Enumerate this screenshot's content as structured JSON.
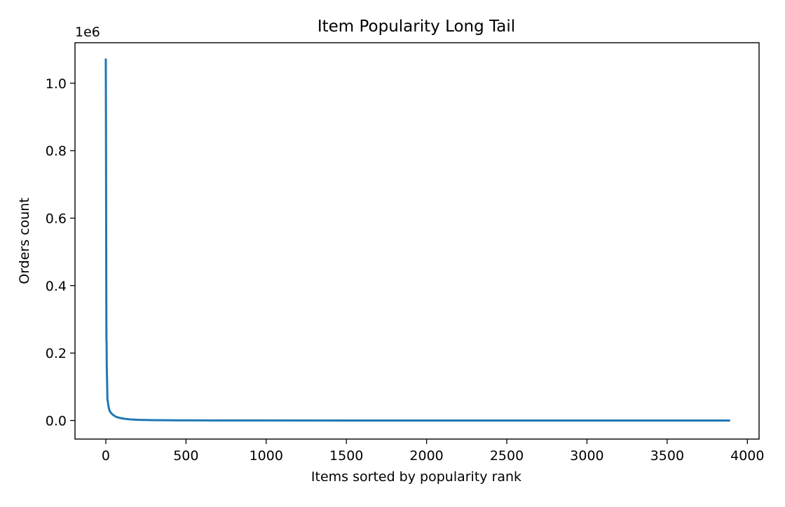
{
  "chart_data": {
    "type": "line",
    "title": "Item Popularity Long Tail",
    "xlabel": "Items sorted by popularity rank",
    "ylabel": "Orders count",
    "y_offset_label": "1e6",
    "xlim": [
      -192,
      4073
    ],
    "ylim": [
      -0.055,
      1.12
    ],
    "y_scale_factor": 1000000,
    "x_ticks": [
      0,
      500,
      1000,
      1500,
      2000,
      2500,
      3000,
      3500,
      4000
    ],
    "x_tick_labels": [
      "0",
      "500",
      "1000",
      "1500",
      "2000",
      "2500",
      "3000",
      "3500",
      "4000"
    ],
    "y_ticks": [
      0.0,
      0.2,
      0.4,
      0.6,
      0.8,
      1.0
    ],
    "y_tick_labels": [
      "0.0",
      "0.2",
      "0.4",
      "0.6",
      "0.8",
      "1.0"
    ],
    "grid": false,
    "series": [
      {
        "color": "#1f77b4",
        "x": [
          0,
          1,
          2,
          3,
          4,
          5,
          6,
          8,
          10,
          13,
          16,
          20,
          25,
          30,
          40,
          50,
          60,
          80,
          100,
          120,
          150,
          200,
          250,
          300,
          400,
          500,
          700,
          1000,
          1500,
          2000,
          2500,
          3000,
          3500,
          3886
        ],
        "y": [
          1070000,
          910000,
          680000,
          420000,
          240000,
          230000,
          160000,
          120000,
          65000,
          55000,
          45000,
          35000,
          28000,
          24000,
          19000,
          15000,
          12000,
          8500,
          6500,
          5000,
          3500,
          2200,
          1500,
          1100,
          700,
          500,
          300,
          180,
          90,
          50,
          30,
          20,
          10,
          5
        ]
      }
    ]
  }
}
